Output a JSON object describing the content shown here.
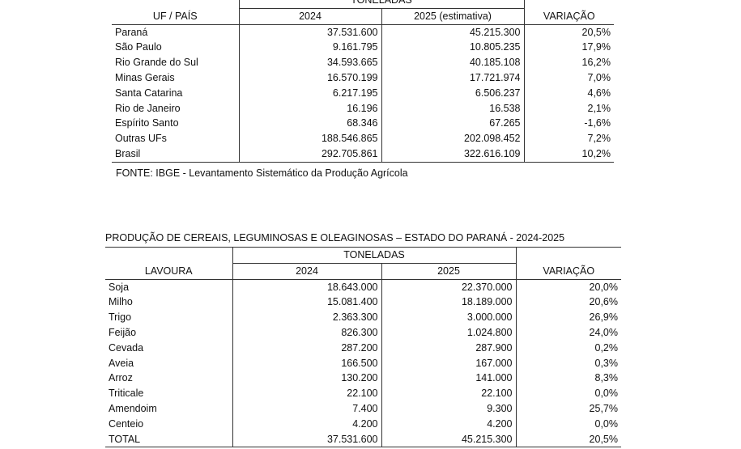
{
  "table1": {
    "group_header": "TONELADAS",
    "col_label": "UF / PAÍS",
    "col_2024": "2024",
    "col_2025": "2025 (estimativa)",
    "col_var": "VARIAÇÃO",
    "rows": [
      {
        "label": "Paraná",
        "v2024": "37.531.600",
        "v2025": "45.215.300",
        "var": "20,5%"
      },
      {
        "label": "São Paulo",
        "v2024": "9.161.795",
        "v2025": "10.805.235",
        "var": "17,9%"
      },
      {
        "label": "Rio Grande do Sul",
        "v2024": "34.593.665",
        "v2025": "40.185.108",
        "var": "16,2%"
      },
      {
        "label": "Minas Gerais",
        "v2024": "16.570.199",
        "v2025": "17.721.974",
        "var": "7,0%"
      },
      {
        "label": "Santa Catarina",
        "v2024": "6.217.195",
        "v2025": "6.506.237",
        "var": "4,6%"
      },
      {
        "label": "Rio de Janeiro",
        "v2024": "16.196",
        "v2025": "16.538",
        "var": "2,1%"
      },
      {
        "label": "Espírito Santo",
        "v2024": "68.346",
        "v2025": "67.265",
        "var": "-1,6%"
      },
      {
        "label": "Outras UFs",
        "v2024": "188.546.865",
        "v2025": "202.098.452",
        "var": "7,2%"
      },
      {
        "label": "Brasil",
        "v2024": "292.705.861",
        "v2025": "322.616.109",
        "var": "10,2%"
      }
    ],
    "source": "FONTE: IBGE - Levantamento Sistemático da Produção Agrícola"
  },
  "table2": {
    "title": "PRODUÇÃO DE CEREAIS, LEGUMINOSAS E OLEAGINOSAS – ESTADO DO PARANÁ - 2024-2025",
    "group_header": "TONELADAS",
    "col_label": "LAVOURA",
    "col_2024": "2024",
    "col_2025": "2025",
    "col_var": "VARIAÇÃO",
    "rows": [
      {
        "label": "Soja",
        "v2024": "18.643.000",
        "v2025": "22.370.000",
        "var": "20,0%"
      },
      {
        "label": "Milho",
        "v2024": "15.081.400",
        "v2025": "18.189.000",
        "var": "20,6%"
      },
      {
        "label": "Trigo",
        "v2024": "2.363.300",
        "v2025": "3.000.000",
        "var": "26,9%"
      },
      {
        "label": "Feijão",
        "v2024": "826.300",
        "v2025": "1.024.800",
        "var": "24,0%"
      },
      {
        "label": "Cevada",
        "v2024": "287.200",
        "v2025": "287.900",
        "var": "0,2%"
      },
      {
        "label": "Aveia",
        "v2024": "166.500",
        "v2025": "167.000",
        "var": "0,3%"
      },
      {
        "label": "Arroz",
        "v2024": "130.200",
        "v2025": "141.000",
        "var": "8,3%"
      },
      {
        "label": "Triticale",
        "v2024": "22.100",
        "v2025": "22.100",
        "var": "0,0%"
      },
      {
        "label": "Amendoim",
        "v2024": "7.400",
        "v2025": "9.300",
        "var": "25,7%"
      },
      {
        "label": "Centeio",
        "v2024": "4.200",
        "v2025": "4.200",
        "var": "0,0%"
      },
      {
        "label": "TOTAL",
        "v2024": "37.531.600",
        "v2025": "45.215.300",
        "var": "20,5%"
      }
    ]
  }
}
